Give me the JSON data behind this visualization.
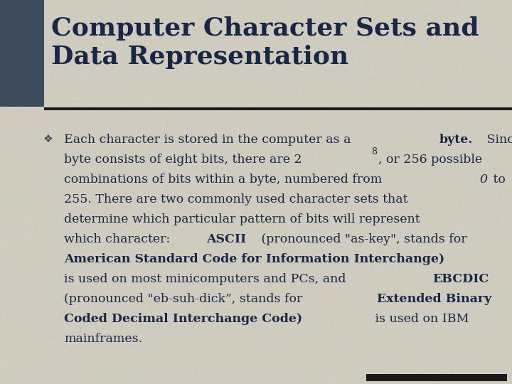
{
  "title_line1": "Computer Character Sets and",
  "title_line2": "Data Representation",
  "title_color": "#1a2744",
  "title_fontsize": 26,
  "background_color": "#d4d0c4",
  "header_bar_color": "#3d4a5c",
  "separator_color": "#1a1a1a",
  "bullet_symbol": "❖",
  "bullet_color": "#3d4a5c",
  "body_fontsize": 12.5,
  "body_color": "#1a2744",
  "bottom_bar_color": "#1a1a1a",
  "lines": [
    [
      {
        "text": "Each character is stored in the computer as a ",
        "bold": false,
        "italic": false
      },
      {
        "text": "byte.",
        "bold": true,
        "italic": false
      },
      {
        "text": " Since a",
        "bold": false,
        "italic": false
      }
    ],
    [
      {
        "text": "byte consists of eight bits, there are 2",
        "bold": false,
        "italic": false
      },
      {
        "text": "8",
        "bold": false,
        "italic": false,
        "super": true
      },
      {
        "text": ", or 256 possible",
        "bold": false,
        "italic": false
      }
    ],
    [
      {
        "text": "combinations of bits within a byte, numbered from ",
        "bold": false,
        "italic": false
      },
      {
        "text": "0",
        "bold": false,
        "italic": true
      },
      {
        "text": " to",
        "bold": false,
        "italic": false
      }
    ],
    [
      {
        "text": "255. There are two commonly used character sets that",
        "bold": false,
        "italic": false
      }
    ],
    [
      {
        "text": "determine which particular pattern of bits will represent",
        "bold": false,
        "italic": false
      }
    ],
    [
      {
        "text": "which character: ",
        "bold": false,
        "italic": false
      },
      {
        "text": "ASCII",
        "bold": true,
        "italic": false
      },
      {
        "text": " (pronounced \"as-key\", stands for",
        "bold": false,
        "italic": false
      }
    ],
    [
      {
        "text": "American Standard Code for Information Interchange)",
        "bold": true,
        "italic": false
      }
    ],
    [
      {
        "text": "is used on most minicomputers and PCs, and ",
        "bold": false,
        "italic": false
      },
      {
        "text": "EBCDIC",
        "bold": true,
        "italic": false
      }
    ],
    [
      {
        "text": "(pronounced \"eb-suh-dick”, stands for ",
        "bold": false,
        "italic": false
      },
      {
        "text": "Extended Binary",
        "bold": true,
        "italic": false
      }
    ],
    [
      {
        "text": "Coded Decimal Interchange Code)",
        "bold": true,
        "italic": false
      },
      {
        "text": " is used on IBM",
        "bold": false,
        "italic": false
      }
    ],
    [
      {
        "text": "mainframes.",
        "bold": false,
        "italic": false
      }
    ]
  ]
}
